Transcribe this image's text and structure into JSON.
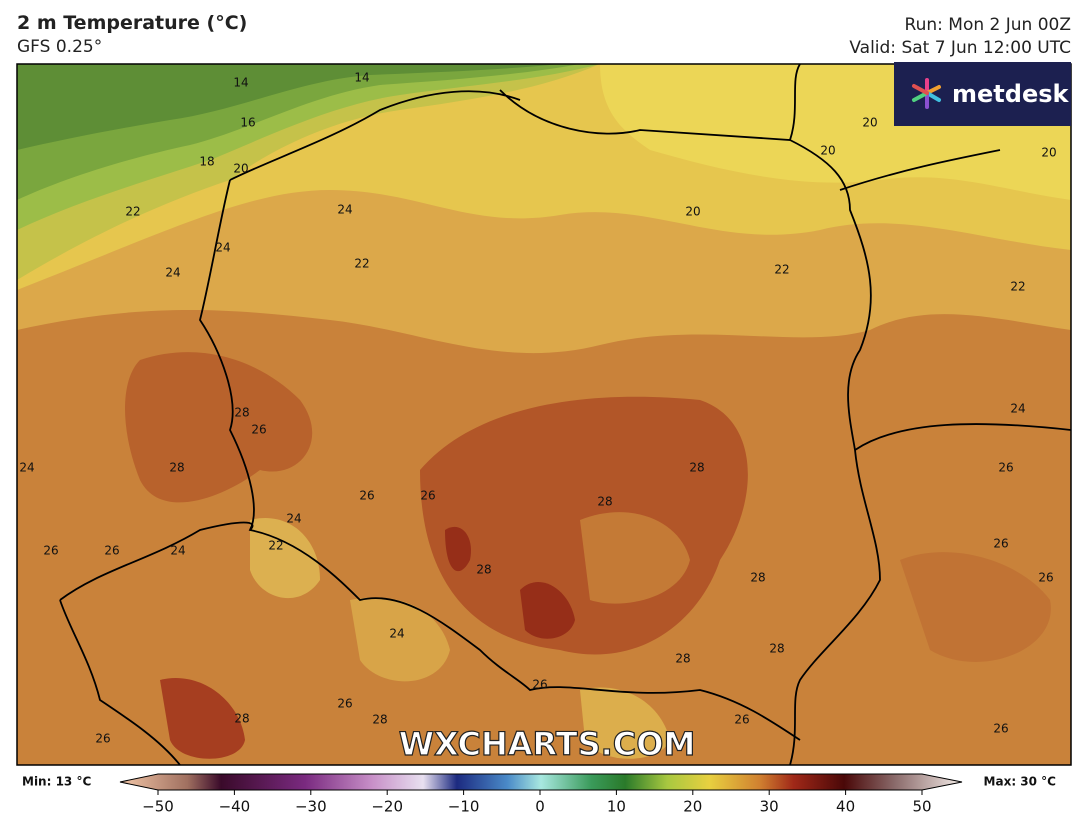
{
  "header": {
    "title": "2 m Temperature (°C)",
    "subtitle": "GFS 0.25°",
    "run": "Run: Mon 2 Jun 00Z",
    "valid": "Valid: Sat 7 Jun 12:00 UTC"
  },
  "logo": "metdesk",
  "watermark": "WXCHARTS.COM",
  "contour_labels": [
    14,
    14,
    16,
    18,
    20,
    22,
    24,
    24,
    24,
    22,
    20,
    22,
    20,
    20,
    20,
    22,
    24,
    28,
    26,
    28,
    24,
    26,
    26,
    28,
    26,
    28,
    24,
    26,
    26,
    24,
    22,
    28,
    28,
    26,
    26,
    24,
    28,
    28,
    26,
    26,
    28,
    28,
    26,
    26,
    26
  ],
  "colorbar": {
    "min_label": "Min: 13 °C",
    "max_label": "Max: 30 °C",
    "ticks": [
      {
        "value": -50,
        "label": "−50"
      },
      {
        "value": -40,
        "label": "−40"
      },
      {
        "value": -30,
        "label": "−30"
      },
      {
        "value": -20,
        "label": "−20"
      },
      {
        "value": -10,
        "label": "−10"
      },
      0,
      10,
      20,
      30,
      40,
      50
    ]
  }
}
